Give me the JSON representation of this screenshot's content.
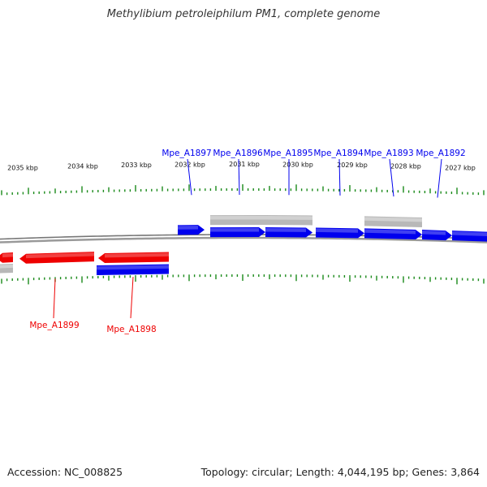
{
  "title": "Methylibium petroleiphilum PM1, complete genome",
  "footer": {
    "accession": "Accession: NC_008825",
    "summary": "Topology: circular; Length: 4,044,195 bp; Genes: 3,864"
  },
  "colors": {
    "forward_gene": "#0000ee",
    "reverse_gene": "#ee0000",
    "other_feature": "#b8b8b8",
    "tick": "#1a8a1a",
    "backbone": "#888888"
  },
  "kbp_labels": [
    "2035 kbp",
    "2034 kbp",
    "2033 kbp",
    "2032 kbp",
    "2031 kbp",
    "2030 kbp",
    "2029 kbp",
    "2028 kbp",
    "2027 kbp"
  ],
  "gene_labels_top": [
    "Mpe_A1897",
    "Mpe_A1896",
    "Mpe_A1895",
    "Mpe_A1894",
    "Mpe_A1893",
    "Mpe_A1892"
  ],
  "gene_labels_bottom": [
    "Mpe_A1899",
    "Mpe_A1898"
  ]
}
